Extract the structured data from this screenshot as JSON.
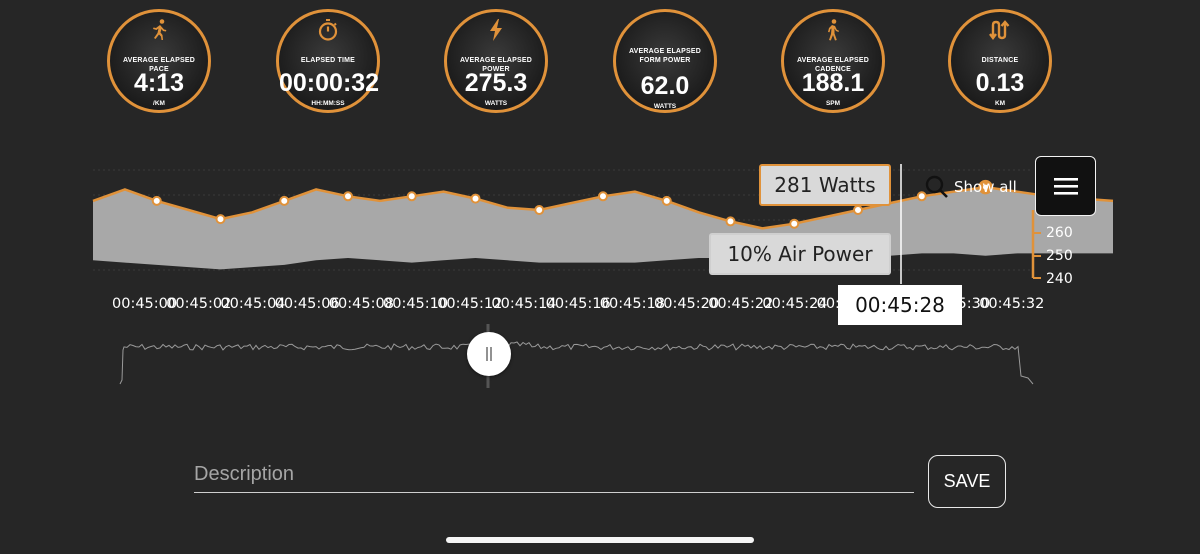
{
  "metrics": [
    {
      "icon": "running-person-icon",
      "label": "AVERAGE ELAPSED PACE",
      "value": "4:13",
      "unit": "/KM"
    },
    {
      "icon": "stopwatch-icon",
      "label": "ELAPSED TIME",
      "value": "00:00:32",
      "unit": "HH:MM:SS"
    },
    {
      "icon": "lightning-bolt-icon",
      "label": "AVERAGE ELAPSED POWER",
      "value": "275.3",
      "unit": "WATTS"
    },
    {
      "icon": "",
      "label": "AVERAGE ELAPSED FORM POWER",
      "value": "62.0",
      "unit": "WATTS"
    },
    {
      "icon": "walking-person-icon",
      "label": "AVERAGE ELAPSED CADENCE",
      "value": "188.1",
      "unit": "SPM"
    },
    {
      "icon": "distance-arrows-icon",
      "label": "DISTANCE",
      "value": "0.13",
      "unit": "KM"
    }
  ],
  "chart": {
    "tooltip_watts": "281 Watts",
    "tooltip_series": "10% Air Power",
    "tooltip_time": "00:45:28",
    "show_all": "Show all",
    "y_ticks": [
      "260",
      "250",
      "240"
    ],
    "x_ticks": [
      "00:45:00",
      "00:45:02",
      "00:45:04",
      "00:45:06",
      "00:45:08",
      "00:45:10",
      "00:45:12",
      "00:45:14",
      "00:45:16",
      "00:45:18",
      "00:45:20",
      "00:45:22",
      "00:45:24",
      "00:45:26",
      "00:45:28",
      "00:45:30",
      "00:45:32"
    ]
  },
  "chart_data": {
    "type": "area",
    "title": "",
    "xlabel": "",
    "ylabel": "",
    "x": [
      "00:45:00",
      "00:45:01",
      "00:45:02",
      "00:45:03",
      "00:45:04",
      "00:45:05",
      "00:45:06",
      "00:45:07",
      "00:45:08",
      "00:45:09",
      "00:45:10",
      "00:45:11",
      "00:45:12",
      "00:45:13",
      "00:45:14",
      "00:45:15",
      "00:45:16",
      "00:45:17",
      "00:45:18",
      "00:45:19",
      "00:45:20",
      "00:45:21",
      "00:45:22",
      "00:45:23",
      "00:45:24",
      "00:45:25",
      "00:45:26",
      "00:45:27",
      "00:45:28",
      "00:45:29",
      "00:45:30",
      "00:45:31",
      "00:45:32"
    ],
    "series": [
      {
        "name": "",
        "values": [
          275,
          280,
          275,
          271,
          267,
          270,
          275,
          280,
          277,
          275,
          277,
          279,
          276,
          272,
          271,
          274,
          277,
          279,
          275,
          270,
          266,
          263,
          265,
          268,
          271,
          274,
          277,
          279,
          281,
          279,
          277,
          276,
          275
        ]
      },
      {
        "name": "10% Air Power",
        "values": [
          249,
          248,
          247,
          246,
          245,
          246,
          247,
          249,
          250,
          249,
          248,
          249,
          250,
          249,
          248,
          248,
          248,
          248,
          249,
          250,
          250,
          249,
          249,
          250,
          250,
          251,
          252,
          252,
          251,
          252,
          252,
          252,
          252
        ]
      }
    ],
    "ylim": [
      236,
      292
    ]
  },
  "form": {
    "description_placeholder": "Description",
    "save_label": "SAVE"
  },
  "colors": {
    "accent": "#e0923a",
    "background": "#262626",
    "area": "#a8a8a8"
  }
}
